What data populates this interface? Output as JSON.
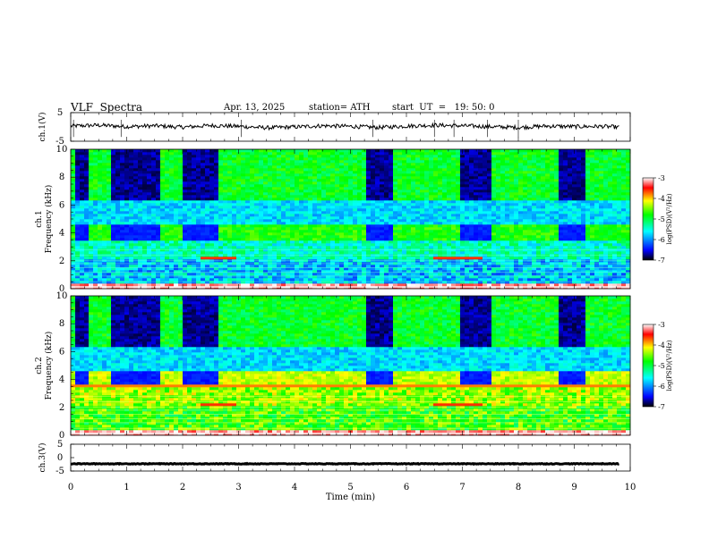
{
  "header": {
    "title": "VLF  Spectra",
    "date": "Apr. 13, 2025",
    "station": "station= ATH",
    "start_ut": "start  UT  =   19: 50: 0"
  },
  "chart_data": [
    {
      "type": "line",
      "panel": "ch1-waveform",
      "ylabel": "ch.1(V)",
      "ylim": [
        -5,
        5
      ],
      "yticks": [
        "5",
        "-5"
      ],
      "xlim": [
        0,
        10
      ],
      "x": [
        0,
        0.5,
        1,
        1.5,
        2,
        2.5,
        3,
        3.5,
        4,
        4.5,
        5,
        5.5,
        6,
        6.5,
        7,
        7.5,
        8,
        8.5,
        9,
        9.5,
        9.8
      ],
      "y": [
        0.3,
        0.6,
        0.1,
        0.4,
        -0.1,
        0.5,
        0.2,
        -0.3,
        0.0,
        0.4,
        0.2,
        -0.2,
        0.3,
        0.6,
        0.4,
        0.1,
        -0.2,
        0.3,
        0.1,
        0.2,
        -0.1
      ]
    },
    {
      "type": "heatmap",
      "panel": "ch1-spectrogram",
      "ylabel": "ch.1\nFrequency (kHz)",
      "ylim": [
        0,
        10
      ],
      "yticks": [
        "0",
        "2",
        "4",
        "6",
        "8",
        "10"
      ],
      "xlim": [
        0,
        10
      ],
      "dark_intervals_min": [
        [
          0.1,
          0.35
        ],
        [
          0.7,
          1.6
        ],
        [
          2.0,
          2.6
        ],
        [
          5.3,
          5.75
        ],
        [
          7.0,
          7.5
        ],
        [
          8.7,
          9.2
        ]
      ],
      "colorbar": {
        "label": "log(PSD)(V²/Hz)",
        "range": [
          -7,
          -3
        ],
        "ticks": [
          "-3",
          "-4",
          "-5",
          "-6",
          "-7"
        ],
        "colors": [
          "#000000",
          "#0000ff",
          "#00ffff",
          "#00ff00",
          "#ffff00",
          "#ff0000",
          "#ffffff"
        ]
      }
    },
    {
      "type": "heatmap",
      "panel": "ch2-spectrogram",
      "ylabel": "ch.2\nFrequency (kHz)",
      "ylim": [
        0,
        10
      ],
      "yticks": [
        "0",
        "2",
        "4",
        "6",
        "8",
        "10"
      ],
      "xlim": [
        0,
        10
      ],
      "dark_intervals_min": [
        [
          0.1,
          0.35
        ],
        [
          0.7,
          1.6
        ],
        [
          2.0,
          2.6
        ],
        [
          5.3,
          5.75
        ],
        [
          7.0,
          7.5
        ],
        [
          8.7,
          9.2
        ]
      ],
      "colorbar": {
        "label": "log(PSD)(V²/Hz)",
        "range": [
          -7,
          -3
        ],
        "ticks": [
          "-3",
          "-4",
          "-5",
          "-6",
          "-7"
        ],
        "colors": [
          "#000000",
          "#0000ff",
          "#00ffff",
          "#00ff00",
          "#ffff00",
          "#ff0000",
          "#ffffff"
        ]
      }
    },
    {
      "type": "line",
      "panel": "ch3-waveform",
      "ylabel": "ch.3(V)",
      "ylim": [
        -5,
        5
      ],
      "yticks": [
        "5",
        "0",
        "-5"
      ],
      "xlim": [
        0,
        10
      ],
      "x": [
        0,
        9.8
      ],
      "y": [
        -2.3,
        -2.3
      ]
    }
  ],
  "x_axis": {
    "label": "Time  (min)",
    "ticks": [
      "0",
      "1",
      "2",
      "3",
      "4",
      "5",
      "6",
      "7",
      "8",
      "9",
      "10"
    ]
  }
}
